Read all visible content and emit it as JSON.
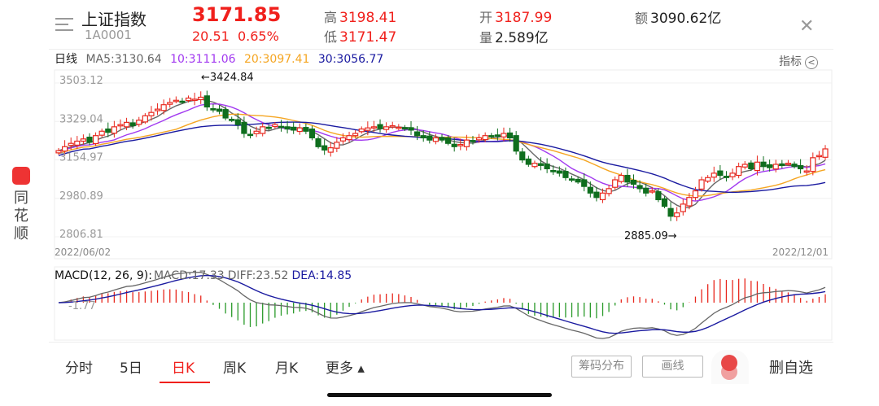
{
  "header": {
    "name": "上证指数",
    "code": "1A0001",
    "price": "3171.85",
    "change": "20.51",
    "change_pct": "0.65%",
    "high_label": "高",
    "high": "3198.41",
    "low_label": "低",
    "low": "3171.47",
    "open_label": "开",
    "open": "3187.99",
    "volume_label": "量",
    "volume": "2.589亿",
    "amount_label": "额",
    "amount": "3090.62亿",
    "close_icon": "close-icon",
    "menu_icon": "menu-icon"
  },
  "ma_row": {
    "period": "日线",
    "ma5": "MA5:3130.64",
    "ma10": "10:3111.06",
    "ma20": "20:3097.41",
    "ma30": "30:3056.77",
    "indicator": "指标"
  },
  "colors": {
    "up": "#e8281e",
    "down": "#0f6e1e",
    "ma5": "#666666",
    "ma10": "#a23af0",
    "ma20": "#f5a623",
    "ma30": "#1a1aa0",
    "accent": "#f0201c"
  },
  "chart_data": {
    "type": "candlestick",
    "y_ticks": [
      "3503.12",
      "3329.04",
      "3154.97",
      "2980.89",
      "2806.81"
    ],
    "ylim": [
      2806.81,
      3503.12
    ],
    "x_start": "2022/06/02",
    "x_end": "2022/12/01",
    "annotations": {
      "high": "←3424.84",
      "low": "2885.09→"
    },
    "closes": [
      3182,
      3200,
      3215,
      3225,
      3235,
      3220,
      3250,
      3270,
      3265,
      3290,
      3300,
      3310,
      3295,
      3320,
      3340,
      3355,
      3370,
      3390,
      3400,
      3410,
      3405,
      3420,
      3415,
      3424,
      3380,
      3370,
      3360,
      3330,
      3320,
      3300,
      3260,
      3255,
      3270,
      3290,
      3285,
      3300,
      3290,
      3280,
      3275,
      3285,
      3270,
      3240,
      3200,
      3185,
      3195,
      3220,
      3240,
      3250,
      3260,
      3280,
      3285,
      3290,
      3282,
      3290,
      3295,
      3288,
      3280,
      3275,
      3250,
      3240,
      3230,
      3240,
      3230,
      3215,
      3200,
      3210,
      3230,
      3225,
      3240,
      3250,
      3245,
      3250,
      3260,
      3240,
      3180,
      3140,
      3120,
      3125,
      3115,
      3100,
      3090,
      3080,
      3060,
      3050,
      3040,
      3020,
      2990,
      2970,
      2990,
      3010,
      3050,
      3070,
      3040,
      3030,
      3010,
      2990,
      3000,
      2960,
      2930,
      2885,
      2900,
      2940,
      2970,
      3000,
      3050,
      3060,
      3080,
      3070,
      3060,
      3080,
      3110,
      3120,
      3100,
      3130,
      3110,
      3105,
      3120,
      3115,
      3125,
      3110,
      3100,
      3090,
      3150,
      3160,
      3190
    ]
  },
  "macd": {
    "title": "MACD(12, 26, 9):",
    "macd": "MACD:17.33",
    "diff": "DIFF:23.52",
    "dea": "DEA:14.85",
    "axis_label": "-1.77"
  },
  "sidebar": {
    "brand": [
      "同",
      "花",
      "顺"
    ]
  },
  "tabs": [
    {
      "label": "分时"
    },
    {
      "label": "5日"
    },
    {
      "label": "日K",
      "active": true
    },
    {
      "label": "周K"
    },
    {
      "label": "月K"
    },
    {
      "label": "更多 ▴"
    }
  ],
  "actions": {
    "chips": "筹码分布",
    "draw": "画线",
    "remove": "删自选"
  }
}
